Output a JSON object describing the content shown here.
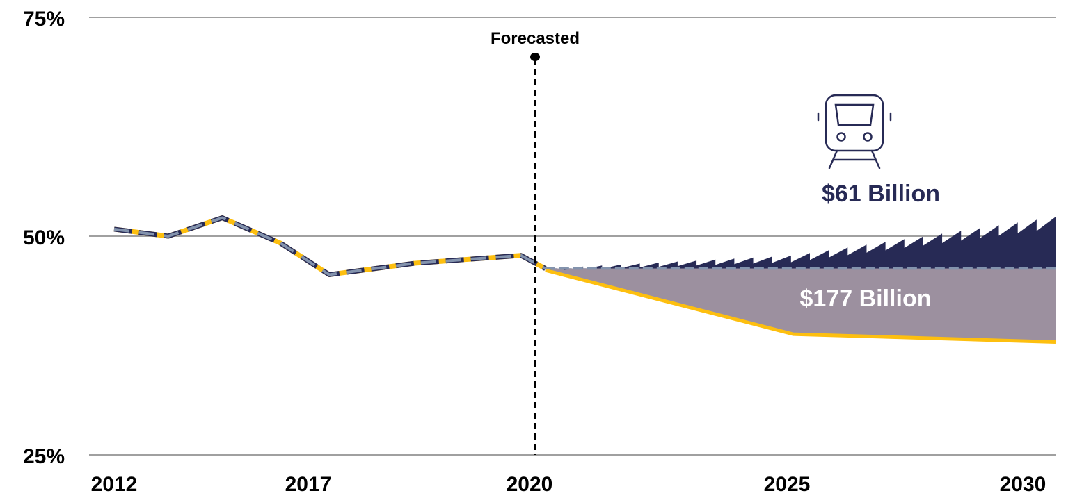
{
  "chart_data": {
    "type": "area",
    "title": "",
    "xlabel": "",
    "ylabel": "",
    "grid": true,
    "x_ticks": [
      "2012",
      "2017",
      "2020",
      "2025",
      "2030"
    ],
    "y_ticks": [
      "75%",
      "50%",
      "25%"
    ],
    "ylim": [
      25,
      75
    ],
    "xlim": [
      2012,
      2030
    ],
    "series": [
      {
        "style": "dashed-line",
        "x": [
          2012,
          2013.3,
          2014.6,
          2016,
          2017.1,
          2018.3,
          2019.8,
          2020.2
        ],
        "values": [
          50.8,
          50.0,
          52.1,
          49.2,
          45.6,
          46.9,
          47.8,
          46.3
        ]
      },
      {
        "style": "solid-line",
        "x": [
          2020.2,
          2025,
          2030
        ],
        "values": [
          46.1,
          38.8,
          37.9
        ]
      },
      {
        "style": "area-above-baseline",
        "x": [
          2020.2,
          2025,
          2030
        ],
        "values": [
          46.3,
          47.8,
          52.2
        ]
      },
      {
        "style": "area-below-baseline",
        "x": [
          2020.2,
          2025,
          2030
        ],
        "values": [
          46.1,
          38.8,
          37.9
        ]
      }
    ],
    "baseline": 46.3,
    "annotations": {
      "forecast_label": "Forecasted",
      "forecast_x": 2020.2,
      "upper_area_label": "$61 Billion",
      "lower_area_label": "$177 Billion"
    },
    "colors": {
      "navy": "#272a55",
      "slate": "#8393ad",
      "yellow": "#fdbf0f",
      "mauve": "#9c909f",
      "grid": "#808080"
    }
  },
  "icons": {
    "train": "train-icon"
  }
}
